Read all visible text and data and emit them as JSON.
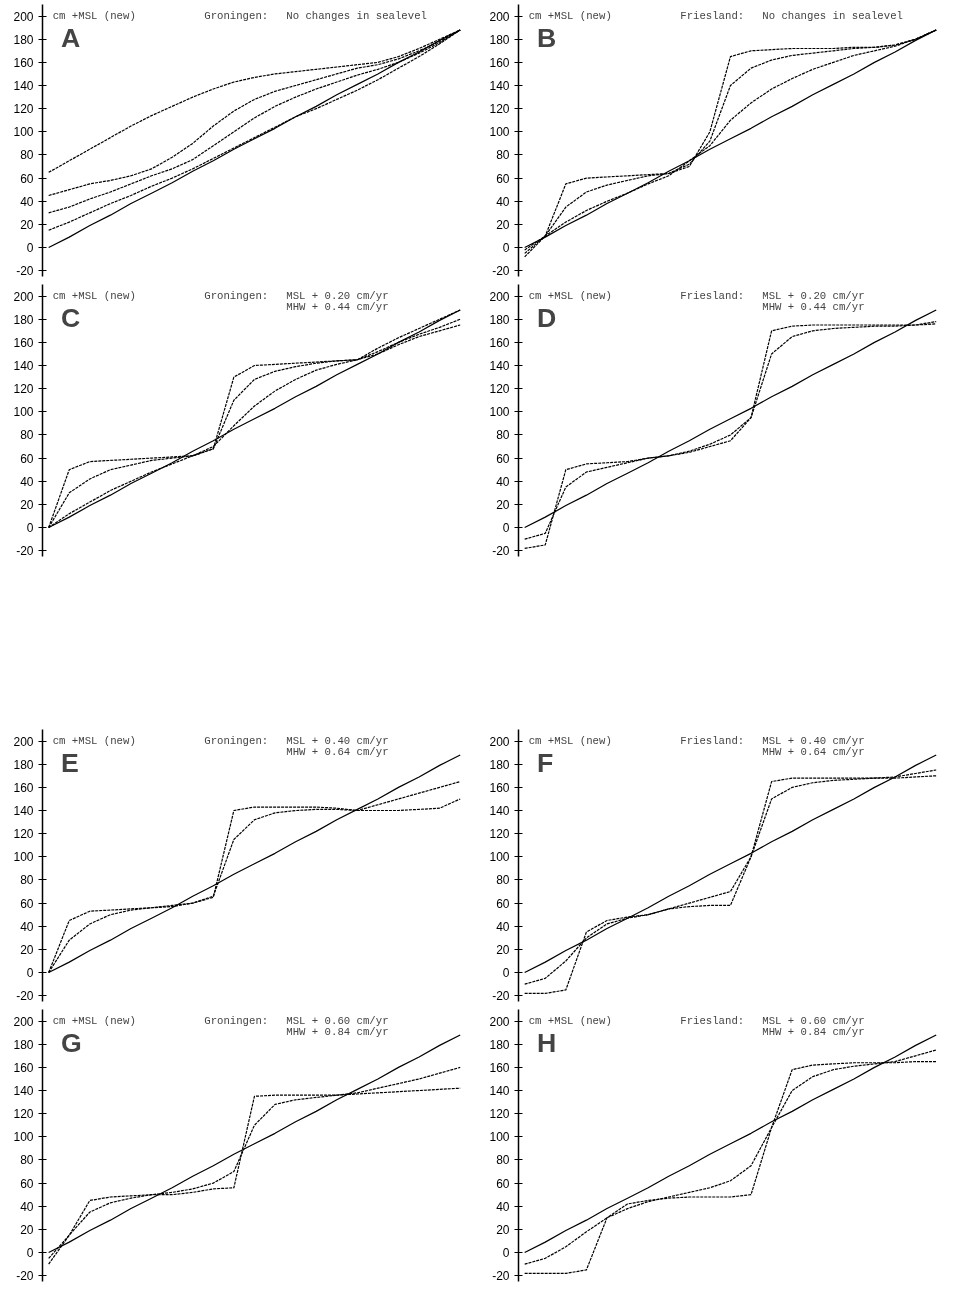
{
  "chart_data": [
    {
      "type": "line",
      "title": "Groningen:",
      "subtitle": "No changes in sealevel",
      "ylabel": "cm +MSL (new)",
      "annotations": [
        "A"
      ],
      "tick_labels": "y",
      "ylim": [
        -25,
        210
      ],
      "yticks": [
        -20,
        0,
        20,
        40,
        60,
        80,
        100,
        120,
        140,
        160,
        180,
        200
      ],
      "categories": [
        null,
        null,
        null,
        null,
        null,
        null,
        null,
        null,
        null,
        null,
        null,
        null,
        null,
        null,
        null,
        null,
        null,
        null,
        null,
        null,
        null
      ],
      "series": [
        {
          "color": "#000000",
          "line_style": "solid",
          "values": [
            0,
            9,
            19,
            28,
            38,
            47,
            56,
            66,
            75,
            85,
            94,
            103,
            113,
            122,
            132,
            141,
            150,
            160,
            169,
            179,
            188
          ]
        },
        {
          "color": "#000000",
          "line_style": "dashed",
          "values": [
            65,
            75,
            85,
            95,
            105,
            114,
            122,
            130,
            137,
            143,
            147,
            150,
            152,
            154,
            156,
            158,
            160,
            165,
            172,
            180,
            188
          ]
        },
        {
          "color": "#000000",
          "line_style": "dashed",
          "values": [
            45,
            50,
            55,
            58,
            62,
            68,
            78,
            90,
            105,
            118,
            128,
            135,
            140,
            145,
            150,
            155,
            158,
            163,
            170,
            178,
            188
          ]
        },
        {
          "color": "#000000",
          "line_style": "dashed",
          "values": [
            30,
            35,
            42,
            48,
            55,
            62,
            68,
            76,
            88,
            100,
            112,
            122,
            130,
            137,
            143,
            149,
            154,
            160,
            168,
            177,
            188
          ]
        },
        {
          "color": "#000000",
          "line_style": "dashed",
          "values": [
            15,
            22,
            30,
            38,
            45,
            53,
            60,
            68,
            77,
            86,
            95,
            104,
            113,
            120,
            128,
            136,
            145,
            155,
            165,
            176,
            188
          ]
        }
      ]
    },
    {
      "type": "line",
      "title": "Friesland:",
      "subtitle": "No changes in sealevel",
      "ylabel": "cm +MSL (new)",
      "annotations": [
        "B"
      ],
      "tick_labels": "y",
      "ylim": [
        -25,
        210
      ],
      "yticks": [
        -20,
        0,
        20,
        40,
        60,
        80,
        100,
        120,
        140,
        160,
        180,
        200
      ],
      "categories": [
        null,
        null,
        null,
        null,
        null,
        null,
        null,
        null,
        null,
        null,
        null,
        null,
        null,
        null,
        null,
        null,
        null,
        null,
        null,
        null,
        null
      ],
      "series": [
        {
          "color": "#000000",
          "line_style": "solid",
          "values": [
            0,
            9,
            19,
            28,
            38,
            47,
            56,
            66,
            75,
            85,
            94,
            103,
            113,
            122,
            132,
            141,
            150,
            160,
            169,
            179,
            188
          ]
        },
        {
          "color": "#000000",
          "line_style": "dashed",
          "values": [
            -8,
            10,
            55,
            60,
            61,
            62,
            63,
            64,
            70,
            100,
            165,
            170,
            171,
            172,
            172,
            172,
            173,
            173,
            175,
            180,
            188
          ]
        },
        {
          "color": "#000000",
          "line_style": "dashed",
          "values": [
            -5,
            10,
            35,
            48,
            54,
            58,
            62,
            64,
            72,
            92,
            140,
            155,
            162,
            166,
            168,
            170,
            172,
            173,
            175,
            180,
            188
          ]
        },
        {
          "color": "#000000",
          "line_style": "dashed",
          "values": [
            -2,
            10,
            22,
            32,
            40,
            47,
            55,
            62,
            75,
            88,
            110,
            125,
            137,
            146,
            154,
            160,
            166,
            170,
            174,
            180,
            188
          ]
        }
      ]
    },
    {
      "type": "line",
      "title": "Groningen:",
      "subtitle": "MSL + 0.20 cm/yr\nMHW + 0.44 cm/yr",
      "ylabel": "cm +MSL (new)",
      "annotations": [
        "C"
      ],
      "tick_labels": "y",
      "ylim": [
        -25,
        210
      ],
      "yticks": [
        -20,
        0,
        20,
        40,
        60,
        80,
        100,
        120,
        140,
        160,
        180,
        200
      ],
      "categories": [
        null,
        null,
        null,
        null,
        null,
        null,
        null,
        null,
        null,
        null,
        null,
        null,
        null,
        null,
        null,
        null,
        null,
        null,
        null,
        null,
        null
      ],
      "series": [
        {
          "color": "#000000",
          "line_style": "solid",
          "values": [
            0,
            9,
            19,
            28,
            38,
            47,
            56,
            66,
            75,
            85,
            94,
            103,
            113,
            122,
            132,
            141,
            150,
            160,
            169,
            179,
            188
          ]
        },
        {
          "color": "#000000",
          "line_style": "dashed",
          "values": [
            0,
            50,
            57,
            58,
            59,
            60,
            61,
            62,
            68,
            130,
            140,
            141,
            142,
            143,
            144,
            145,
            150,
            158,
            165,
            170,
            175
          ]
        },
        {
          "color": "#000000",
          "line_style": "dashed",
          "values": [
            0,
            30,
            42,
            50,
            54,
            58,
            60,
            62,
            68,
            110,
            128,
            135,
            139,
            142,
            144,
            145,
            152,
            160,
            167,
            173,
            180
          ]
        },
        {
          "color": "#000000",
          "line_style": "dashed",
          "values": [
            0,
            12,
            22,
            32,
            40,
            48,
            55,
            62,
            70,
            88,
            105,
            118,
            128,
            136,
            141,
            145,
            155,
            164,
            172,
            180,
            188
          ]
        }
      ]
    },
    {
      "type": "line",
      "title": "Friesland:",
      "subtitle": "MSL + 0.20 cm/yr\nMHW + 0.44 cm/yr",
      "ylabel": "cm +MSL (new)",
      "annotations": [
        "D"
      ],
      "tick_labels": "y",
      "ylim": [
        -25,
        210
      ],
      "yticks": [
        -20,
        0,
        20,
        40,
        60,
        80,
        100,
        120,
        140,
        160,
        180,
        200
      ],
      "categories": [
        null,
        null,
        null,
        null,
        null,
        null,
        null,
        null,
        null,
        null,
        null,
        null,
        null,
        null,
        null,
        null,
        null,
        null,
        null,
        null,
        null
      ],
      "series": [
        {
          "color": "#000000",
          "line_style": "solid",
          "values": [
            0,
            9,
            19,
            28,
            38,
            47,
            56,
            66,
            75,
            85,
            94,
            103,
            113,
            122,
            132,
            141,
            150,
            160,
            169,
            179,
            188
          ]
        },
        {
          "color": "#000000",
          "line_style": "dashed",
          "values": [
            -18,
            -15,
            50,
            55,
            56,
            57,
            60,
            62,
            65,
            70,
            75,
            95,
            170,
            174,
            175,
            175,
            175,
            175,
            175,
            175,
            176
          ]
        },
        {
          "color": "#000000",
          "line_style": "dashed",
          "values": [
            -10,
            -5,
            35,
            48,
            52,
            56,
            60,
            62,
            66,
            72,
            80,
            95,
            150,
            165,
            170,
            172,
            173,
            174,
            174,
            175,
            178
          ]
        }
      ]
    },
    {
      "type": "line",
      "title": "Groningen:",
      "subtitle": "MSL + 0.40 cm/yr\nMHW + 0.64 cm/yr",
      "ylabel": "cm +MSL (new)",
      "annotations": [
        "E"
      ],
      "tick_labels": "y",
      "ylim": [
        -25,
        210
      ],
      "yticks": [
        -20,
        0,
        20,
        40,
        60,
        80,
        100,
        120,
        140,
        160,
        180,
        200
      ],
      "categories": [
        null,
        null,
        null,
        null,
        null,
        null,
        null,
        null,
        null,
        null,
        null,
        null,
        null,
        null,
        null,
        null,
        null,
        null,
        null,
        null,
        null
      ],
      "series": [
        {
          "color": "#000000",
          "line_style": "solid",
          "values": [
            0,
            9,
            19,
            28,
            38,
            47,
            56,
            66,
            75,
            85,
            94,
            103,
            113,
            122,
            132,
            141,
            150,
            160,
            169,
            179,
            188
          ]
        },
        {
          "color": "#000000",
          "line_style": "dashed",
          "values": [
            0,
            45,
            53,
            54,
            55,
            56,
            57,
            60,
            65,
            140,
            143,
            143,
            143,
            143,
            142,
            140,
            140,
            140,
            141,
            142,
            150
          ]
        },
        {
          "color": "#000000",
          "line_style": "dashed",
          "values": [
            0,
            28,
            42,
            50,
            54,
            56,
            58,
            60,
            66,
            115,
            132,
            138,
            140,
            141,
            141,
            140,
            145,
            150,
            155,
            160,
            165
          ]
        }
      ]
    },
    {
      "type": "line",
      "title": "Friesland:",
      "subtitle": "MSL + 0.40 cm/yr\nMHW + 0.64 cm/yr",
      "ylabel": "cm +MSL (new)",
      "annotations": [
        "F"
      ],
      "tick_labels": "y",
      "ylim": [
        -25,
        210
      ],
      "yticks": [
        -20,
        0,
        20,
        40,
        60,
        80,
        100,
        120,
        140,
        160,
        180,
        200
      ],
      "categories": [
        null,
        null,
        null,
        null,
        null,
        null,
        null,
        null,
        null,
        null,
        null,
        null,
        null,
        null,
        null,
        null,
        null,
        null,
        null,
        null,
        null
      ],
      "series": [
        {
          "color": "#000000",
          "line_style": "solid",
          "values": [
            0,
            9,
            19,
            28,
            38,
            47,
            56,
            66,
            75,
            85,
            94,
            103,
            113,
            122,
            132,
            141,
            150,
            160,
            169,
            179,
            188
          ]
        },
        {
          "color": "#000000",
          "line_style": "dashed",
          "values": [
            -18,
            -18,
            -15,
            35,
            45,
            48,
            50,
            55,
            57,
            58,
            58,
            100,
            165,
            168,
            168,
            168,
            168,
            168,
            168,
            169,
            170
          ]
        },
        {
          "color": "#000000",
          "line_style": "dashed",
          "values": [
            -10,
            -5,
            10,
            30,
            42,
            47,
            50,
            55,
            60,
            65,
            70,
            100,
            150,
            160,
            164,
            166,
            167,
            168,
            169,
            172,
            175
          ]
        }
      ]
    },
    {
      "type": "line",
      "title": "Groningen:",
      "subtitle": "MSL + 0.60 cm/yr\nMHW + 0.84 cm/yr",
      "ylabel": "cm +MSL (new)",
      "annotations": [
        "G"
      ],
      "tick_labels": "y",
      "ylim": [
        -25,
        210
      ],
      "yticks": [
        -20,
        0,
        20,
        40,
        60,
        80,
        100,
        120,
        140,
        160,
        180,
        200
      ],
      "categories": [
        null,
        null,
        null,
        null,
        null,
        null,
        null,
        null,
        null,
        null,
        null,
        null,
        null,
        null,
        null,
        null,
        null,
        null,
        null,
        null,
        null
      ],
      "series": [
        {
          "color": "#000000",
          "line_style": "solid",
          "values": [
            0,
            9,
            19,
            28,
            38,
            47,
            56,
            66,
            75,
            85,
            94,
            103,
            113,
            122,
            132,
            141,
            150,
            160,
            169,
            179,
            188
          ]
        },
        {
          "color": "#000000",
          "line_style": "dashed",
          "values": [
            -10,
            15,
            45,
            48,
            49,
            50,
            50,
            52,
            55,
            56,
            135,
            136,
            136,
            136,
            136,
            137,
            138,
            139,
            140,
            141,
            142
          ]
        },
        {
          "color": "#000000",
          "line_style": "dashed",
          "values": [
            -5,
            15,
            35,
            43,
            47,
            50,
            52,
            55,
            60,
            70,
            110,
            128,
            132,
            134,
            136,
            138,
            142,
            146,
            150,
            155,
            160
          ]
        }
      ]
    },
    {
      "type": "line",
      "title": "Friesland:",
      "subtitle": "MSL + 0.60 cm/yr\nMHW + 0.84 cm/yr",
      "ylabel": "cm +MSL (new)",
      "annotations": [
        "H"
      ],
      "tick_labels": "y",
      "ylim": [
        -25,
        210
      ],
      "yticks": [
        -20,
        0,
        20,
        40,
        60,
        80,
        100,
        120,
        140,
        160,
        180,
        200
      ],
      "categories": [
        null,
        null,
        null,
        null,
        null,
        null,
        null,
        null,
        null,
        null,
        null,
        null,
        null,
        null,
        null,
        null,
        null,
        null,
        null,
        null,
        null
      ],
      "series": [
        {
          "color": "#000000",
          "line_style": "solid",
          "values": [
            0,
            9,
            19,
            28,
            38,
            47,
            56,
            66,
            75,
            85,
            94,
            103,
            113,
            122,
            132,
            141,
            150,
            160,
            169,
            179,
            188
          ]
        },
        {
          "color": "#000000",
          "line_style": "dashed",
          "values": [
            -18,
            -18,
            -18,
            -15,
            30,
            42,
            45,
            47,
            48,
            48,
            48,
            50,
            108,
            158,
            162,
            163,
            164,
            164,
            164,
            165,
            165
          ]
        },
        {
          "color": "#000000",
          "line_style": "dashed",
          "values": [
            -10,
            -5,
            5,
            18,
            30,
            38,
            44,
            48,
            52,
            56,
            62,
            75,
            108,
            140,
            152,
            158,
            161,
            163,
            165,
            170,
            175
          ]
        }
      ]
    }
  ]
}
